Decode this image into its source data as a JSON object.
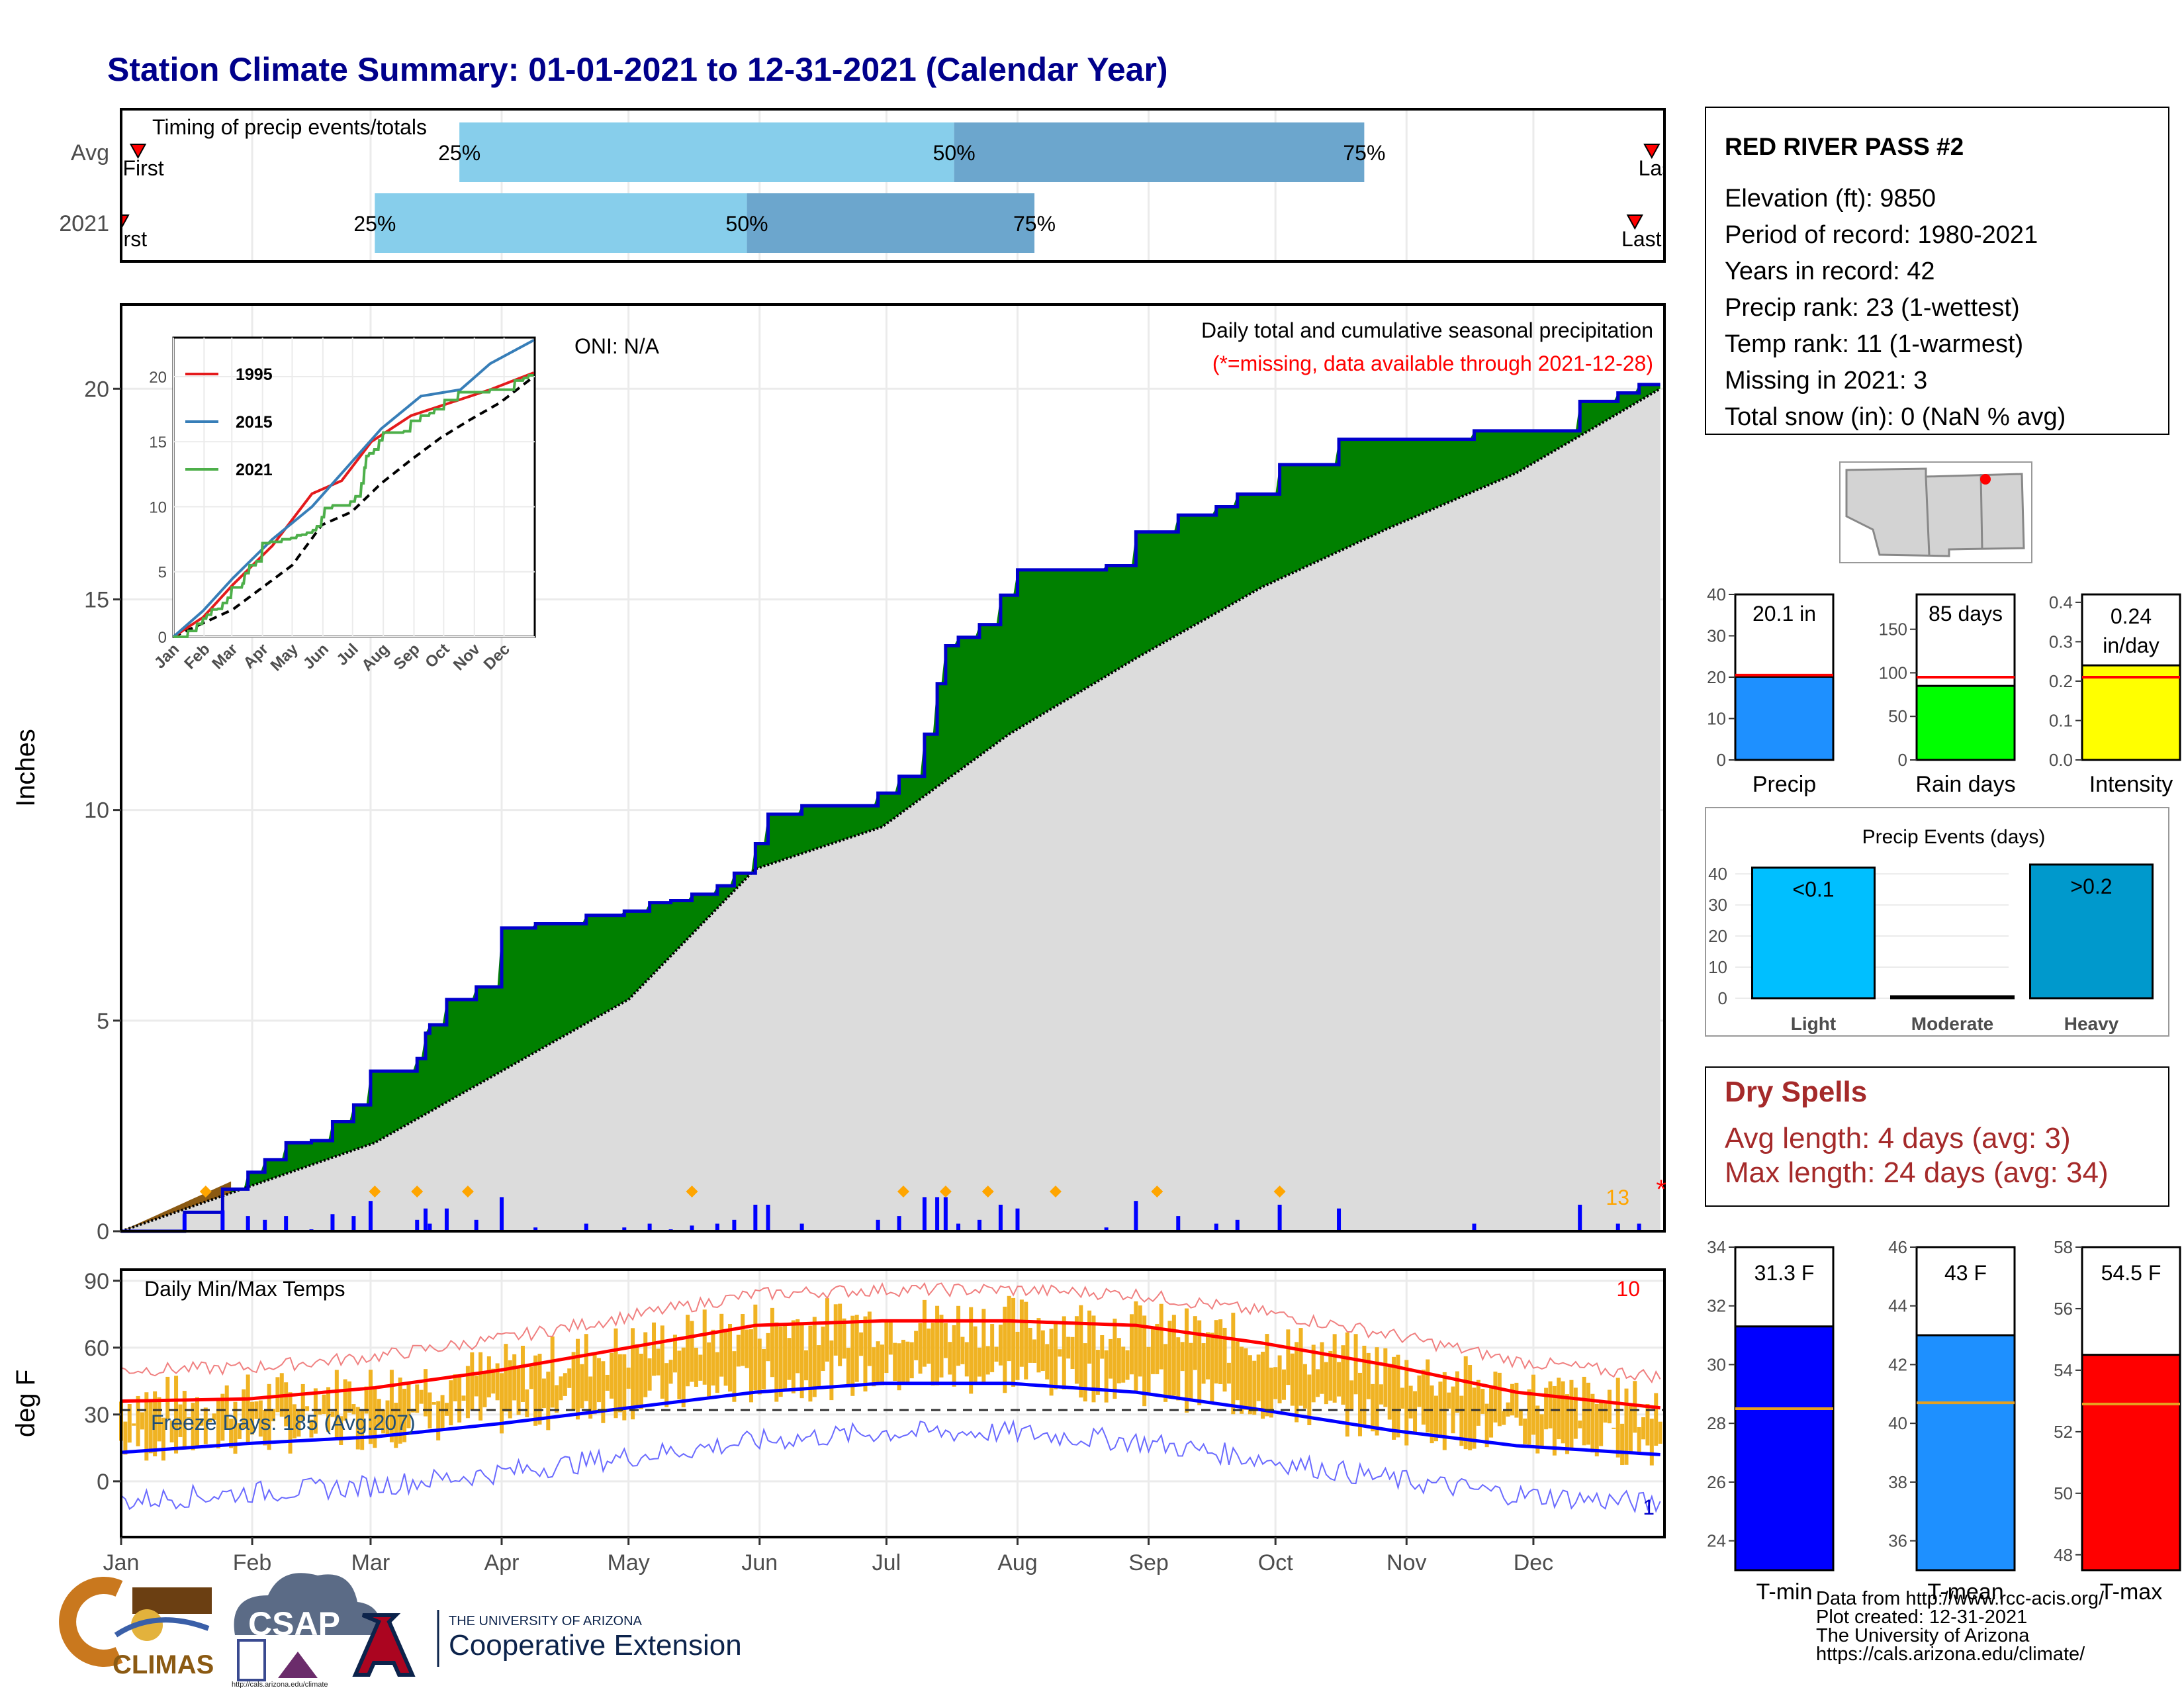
{
  "title": "Station Climate Summary: 01-01-2021 to 12-31-2021 (Calendar Year)",
  "colors": {
    "title": "#00008B",
    "dark_blue": "#0000CC",
    "green": "#008000",
    "gray_fill": "#DCDCDC",
    "brown": "#8B5A13",
    "orange": "#FFA500",
    "red": "#FF0000",
    "dry": "#A52A2A",
    "lightblue": "#87CEEB",
    "midblue": "#6CA6CD"
  },
  "months": [
    "Jan",
    "Feb",
    "Mar",
    "Apr",
    "May",
    "Jun",
    "Jul",
    "Aug",
    "Sep",
    "Oct",
    "Nov",
    "Dec"
  ],
  "timing": {
    "label": "Timing of precip events/totals",
    "rows": [
      {
        "name": "Avg",
        "first": "First",
        "last": "Last",
        "p25": "25%",
        "p50": "50%",
        "p75": "75%",
        "d25": 80,
        "d50": 197,
        "d75": 294,
        "d_first": 4,
        "d_last": 362
      },
      {
        "name": "2021",
        "first": "First",
        "last": "Last",
        "p25": "25%",
        "p50": "50%",
        "p75": "75%",
        "d25": 60,
        "d50": 148,
        "d75": 216,
        "d_first": 0,
        "d_last": 358
      }
    ]
  },
  "precip_panel": {
    "ylabel": "Inches",
    "yticks": [
      "0",
      "5",
      "10",
      "15",
      "20"
    ],
    "ymax": 22,
    "header": "Daily total and cumulative seasonal precipitation",
    "missing_note": "(*=missing, data available through 2021-12-28)",
    "oni": "ONI: N/A",
    "missing_count": "13",
    "missing_marker": "*"
  },
  "inset": {
    "yticks": [
      "0",
      "5",
      "10",
      "15",
      "20"
    ],
    "legend": [
      {
        "name": "1995",
        "color": "#E41A1C"
      },
      {
        "name": "2015",
        "color": "#377EB8"
      },
      {
        "name": "2021",
        "color": "#4DAF4A"
      }
    ]
  },
  "chart_data": {
    "type": "area",
    "cumulative_2021": [
      [
        0,
        0.0
      ],
      [
        15,
        0.45
      ],
      [
        24,
        1.0
      ],
      [
        30,
        1.4
      ],
      [
        34,
        1.7
      ],
      [
        39,
        2.1
      ],
      [
        45,
        2.15
      ],
      [
        50,
        2.6
      ],
      [
        55,
        3.0
      ],
      [
        59,
        3.8
      ],
      [
        70,
        4.1
      ],
      [
        72,
        4.7
      ],
      [
        73,
        4.9
      ],
      [
        77,
        5.5
      ],
      [
        84,
        5.8
      ],
      [
        90,
        7.2
      ],
      [
        98,
        7.3
      ],
      [
        110,
        7.5
      ],
      [
        119,
        7.6
      ],
      [
        125,
        7.8
      ],
      [
        130,
        7.85
      ],
      [
        135,
        8.0
      ],
      [
        141,
        8.2
      ],
      [
        145,
        8.5
      ],
      [
        150,
        9.2
      ],
      [
        153,
        9.9
      ],
      [
        161,
        10.1
      ],
      [
        175,
        10.1
      ],
      [
        179,
        10.4
      ],
      [
        184,
        10.8
      ],
      [
        190,
        11.8
      ],
      [
        193,
        13.0
      ],
      [
        195,
        13.9
      ],
      [
        198,
        14.1
      ],
      [
        203,
        14.4
      ],
      [
        208,
        15.1
      ],
      [
        212,
        15.7
      ],
      [
        233,
        15.8
      ],
      [
        240,
        16.6
      ],
      [
        250,
        17.0
      ],
      [
        259,
        17.2
      ],
      [
        264,
        17.5
      ],
      [
        274,
        18.2
      ],
      [
        288,
        18.8
      ],
      [
        320,
        19.0
      ],
      [
        345,
        19.7
      ],
      [
        354,
        19.9
      ],
      [
        359,
        20.1
      ],
      [
        364,
        20.1
      ]
    ],
    "cumulative_avg": [
      [
        0,
        0.0
      ],
      [
        60,
        2.1
      ],
      [
        120,
        5.5
      ],
      [
        150,
        8.6
      ],
      [
        180,
        9.6
      ],
      [
        210,
        11.8
      ],
      [
        240,
        13.6
      ],
      [
        270,
        15.3
      ],
      [
        300,
        16.7
      ],
      [
        330,
        18.0
      ],
      [
        364,
        20.0
      ]
    ],
    "daily_orange_markers": [
      20,
      60,
      70,
      82,
      135,
      185,
      195,
      205,
      221,
      245,
      274
    ],
    "temps": {
      "title": "Daily Min/Max Temps",
      "ylabel": "deg F",
      "yticks": [
        "0",
        "30",
        "60",
        "90"
      ],
      "freeze_days": "Freeze Days: 185 (Avg:207)",
      "count_hot": "10",
      "count_cold": "1",
      "avg_max": [
        [
          0,
          36
        ],
        [
          30,
          37
        ],
        [
          60,
          42
        ],
        [
          90,
          50
        ],
        [
          120,
          60
        ],
        [
          150,
          70
        ],
        [
          180,
          72
        ],
        [
          210,
          72
        ],
        [
          240,
          70
        ],
        [
          270,
          62
        ],
        [
          300,
          52
        ],
        [
          330,
          40
        ],
        [
          364,
          33
        ]
      ],
      "avg_min": [
        [
          0,
          13
        ],
        [
          30,
          17
        ],
        [
          60,
          20
        ],
        [
          90,
          26
        ],
        [
          120,
          33
        ],
        [
          150,
          40
        ],
        [
          180,
          44
        ],
        [
          210,
          44
        ],
        [
          240,
          40
        ],
        [
          270,
          32
        ],
        [
          300,
          23
        ],
        [
          330,
          16
        ],
        [
          364,
          12
        ]
      ]
    }
  },
  "station": {
    "name": "RED RIVER PASS #2",
    "lines": [
      "Elevation (ft): 9850",
      "Period of record: 1980-2021",
      "Years in record: 42",
      "Precip rank: 23 (1-wettest)",
      "Temp rank: 11 (1-warmest)",
      "Missing in 2021: 3",
      "Total snow (in): 0 (NaN % avg)"
    ]
  },
  "summary_bars": [
    {
      "label": "Precip",
      "value_label": "20.1 in",
      "value": 20.1,
      "avg": 20.5,
      "ymax": 40,
      "yticks": [
        "0",
        "10",
        "20",
        "30",
        "40"
      ],
      "tickvals": [
        0,
        10,
        20,
        30,
        40
      ],
      "color": "#1E90FF"
    },
    {
      "label": "Rain days",
      "value_label": "85 days",
      "value": 85,
      "avg": 95,
      "ymax": 190,
      "yticks": [
        "0",
        "50",
        "100",
        "150"
      ],
      "tickvals": [
        0,
        50,
        100,
        150
      ],
      "color": "#00FF00"
    },
    {
      "label": "Intensity",
      "value_label": "0.24 in/day",
      "value": 0.24,
      "avg": 0.21,
      "ymax": 0.42,
      "yticks": [
        "0.0",
        "0.1",
        "0.2",
        "0.3",
        "0.4"
      ],
      "tickvals": [
        0,
        0.1,
        0.2,
        0.3,
        0.4
      ],
      "color": "#FFFF00"
    }
  ],
  "events": {
    "title": "Precip Events (days)",
    "yticks": [
      "0",
      "10",
      "20",
      "30",
      "40"
    ],
    "bars": [
      {
        "label": "Light",
        "value": 42,
        "text": "<0.1",
        "color": "#00BFFF"
      },
      {
        "label": "Moderate",
        "value": 0,
        "text": "",
        "color": "#0099CC"
      },
      {
        "label": "Heavy",
        "value": 43,
        "text": ">0.2",
        "color": "#0099CC"
      }
    ]
  },
  "dry_spells": {
    "title": "Dry Spells",
    "avg_length": "Avg length: 4 days (avg: 3)",
    "max_length": "Max length: 24 days (avg: 34)"
  },
  "temp_bars": [
    {
      "label": "T-min",
      "value_label": "31.3 F",
      "value": 31.3,
      "avg": 28.5,
      "ymin": 23,
      "ymax": 34,
      "yticks": [
        "24",
        "26",
        "28",
        "30",
        "32",
        "34"
      ],
      "tickvals": [
        24,
        26,
        28,
        30,
        32,
        34
      ],
      "color": "#0000FF"
    },
    {
      "label": "T-mean",
      "value_label": "43 F",
      "value": 43,
      "avg": 40.7,
      "ymin": 35,
      "ymax": 46,
      "yticks": [
        "36",
        "38",
        "40",
        "42",
        "44",
        "46"
      ],
      "tickvals": [
        36,
        38,
        40,
        42,
        44,
        46
      ],
      "color": "#1E90FF"
    },
    {
      "label": "T-max",
      "value_label": "54.5 F",
      "value": 54.5,
      "avg": 52.9,
      "ymin": 47.5,
      "ymax": 58,
      "yticks": [
        "48",
        "50",
        "52",
        "54",
        "56",
        "58"
      ],
      "tickvals": [
        48,
        50,
        52,
        54,
        56,
        58
      ],
      "color": "#FF0000"
    }
  ],
  "footer": {
    "credits": [
      "Data from http://www.rcc-acis.org/",
      "Plot created: 12-31-2021",
      "The University of Arizona",
      "https://cals.arizona.edu/climate/"
    ],
    "logos": {
      "climas": "CLIMAS",
      "csap": "CSAP",
      "csap_url": "http://cals.arizona.edu/climate",
      "ua_line1": "THE UNIVERSITY OF ARIZONA",
      "ua_line2": "Cooperative Extension"
    }
  }
}
